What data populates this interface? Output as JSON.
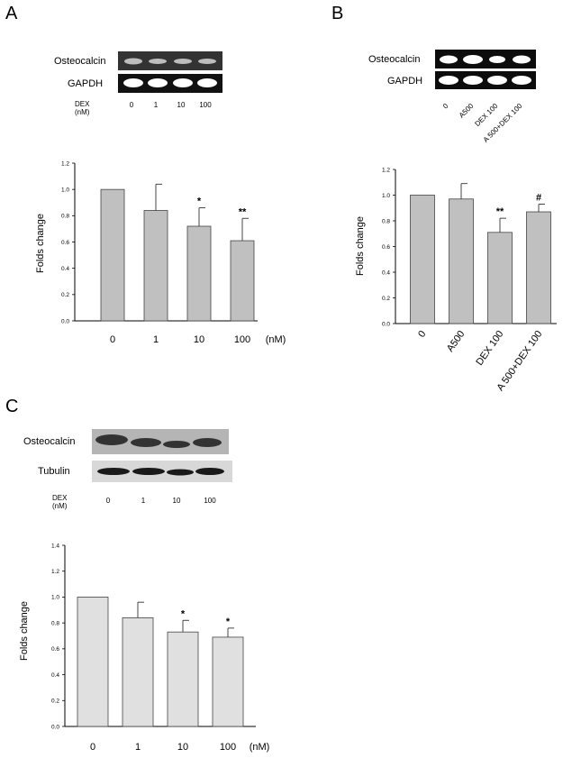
{
  "panels": [
    {
      "letter": "A",
      "gel": {
        "rows": [
          "Osteocalcin",
          "GAPDH"
        ],
        "lane_axis_label": "DEX (nM)",
        "lanes": [
          "0",
          "1",
          "10",
          "100"
        ]
      }
    },
    {
      "letter": "B",
      "gel": {
        "rows": [
          "Osteocalcin",
          "GAPDH"
        ],
        "lanes": [
          "0",
          "A500",
          "DEX 100",
          "A 500+DEX 100"
        ]
      }
    },
    {
      "letter": "C",
      "gel": {
        "rows": [
          "Osteocalcin",
          "Tubulin"
        ],
        "lane_axis_label": "DEX (nM)",
        "lanes": [
          "0",
          "1",
          "10",
          "100"
        ]
      }
    }
  ],
  "colors": {
    "bar_A_B": "#c0c0c0",
    "bar_C": "#e0e0e0",
    "axis": "#000000"
  },
  "chart_data": [
    {
      "type": "bar",
      "panel": "A",
      "categories": [
        "0",
        "1",
        "10",
        "100"
      ],
      "values": [
        1.0,
        0.84,
        0.72,
        0.61
      ],
      "errors": [
        0.0,
        0.2,
        0.14,
        0.17
      ],
      "annotations": [
        "",
        "",
        "*",
        "**"
      ],
      "ylabel": "Folds change",
      "x_unit": "(nM)",
      "ylim": [
        0,
        1.2
      ],
      "yticks": [
        "0.0",
        "0.2",
        "0.4",
        "0.6",
        "0.8",
        "1.0",
        "1.2"
      ]
    },
    {
      "type": "bar",
      "panel": "B",
      "categories": [
        "0",
        "A500",
        "DEX 100",
        "A 500+DEX 100"
      ],
      "values": [
        1.0,
        0.97,
        0.71,
        0.87
      ],
      "errors": [
        0.0,
        0.12,
        0.11,
        0.06
      ],
      "annotations": [
        "",
        "",
        "**",
        "#"
      ],
      "ylabel": "Folds change",
      "ylim": [
        0,
        1.2
      ],
      "yticks": [
        "0.0",
        "0.2",
        "0.4",
        "0.6",
        "0.8",
        "1.0",
        "1.2"
      ]
    },
    {
      "type": "bar",
      "panel": "C",
      "categories": [
        "0",
        "1",
        "10",
        "100"
      ],
      "values": [
        1.0,
        0.84,
        0.73,
        0.69
      ],
      "errors": [
        0.0,
        0.12,
        0.09,
        0.07
      ],
      "annotations": [
        "",
        "",
        "*",
        "*"
      ],
      "ylabel": "Folds change",
      "x_unit": "(nM)",
      "ylim": [
        0,
        1.4
      ],
      "yticks": [
        "0.0",
        "0.2",
        "0.4",
        "0.6",
        "0.8",
        "1.0",
        "1.2",
        "1.4"
      ]
    }
  ]
}
